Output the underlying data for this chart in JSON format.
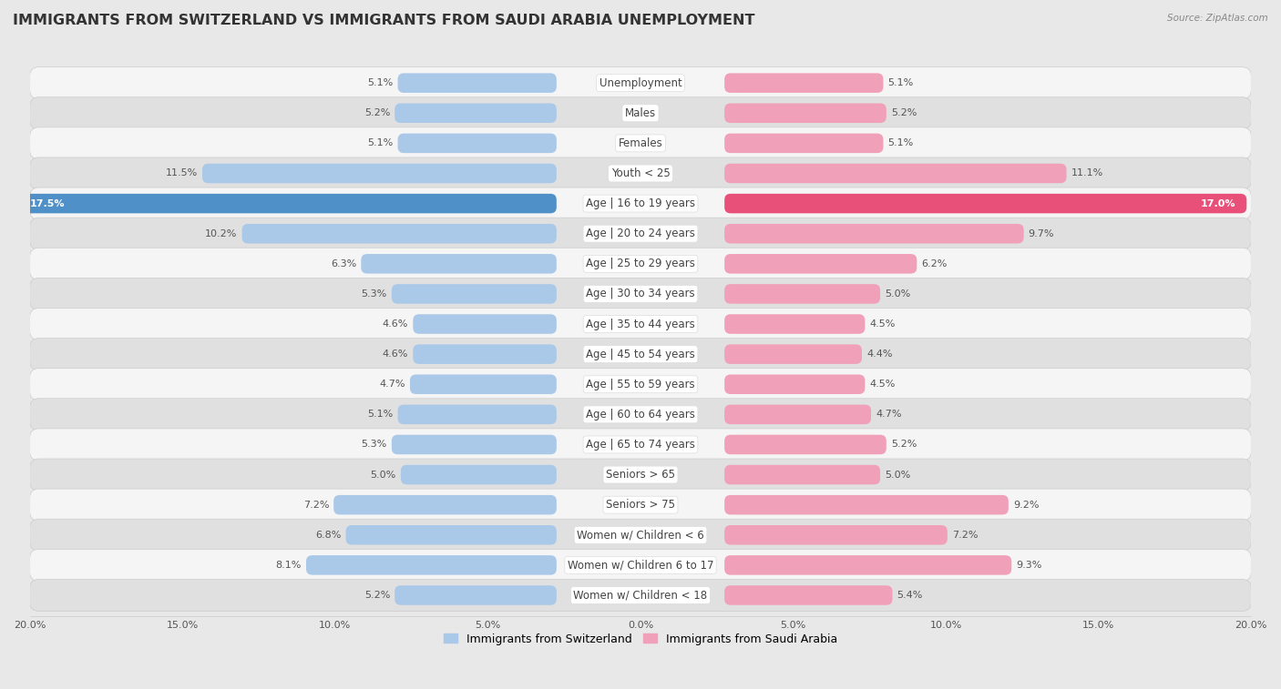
{
  "title": "IMMIGRANTS FROM SWITZERLAND VS IMMIGRANTS FROM SAUDI ARABIA UNEMPLOYMENT",
  "source": "Source: ZipAtlas.com",
  "categories": [
    "Unemployment",
    "Males",
    "Females",
    "Youth < 25",
    "Age | 16 to 19 years",
    "Age | 20 to 24 years",
    "Age | 25 to 29 years",
    "Age | 30 to 34 years",
    "Age | 35 to 44 years",
    "Age | 45 to 54 years",
    "Age | 55 to 59 years",
    "Age | 60 to 64 years",
    "Age | 65 to 74 years",
    "Seniors > 65",
    "Seniors > 75",
    "Women w/ Children < 6",
    "Women w/ Children 6 to 17",
    "Women w/ Children < 18"
  ],
  "switzerland_values": [
    5.1,
    5.2,
    5.1,
    11.5,
    17.5,
    10.2,
    6.3,
    5.3,
    4.6,
    4.6,
    4.7,
    5.1,
    5.3,
    5.0,
    7.2,
    6.8,
    8.1,
    5.2
  ],
  "saudi_values": [
    5.1,
    5.2,
    5.1,
    11.1,
    17.0,
    9.7,
    6.2,
    5.0,
    4.5,
    4.4,
    4.5,
    4.7,
    5.2,
    5.0,
    9.2,
    7.2,
    9.3,
    5.4
  ],
  "switzerland_color": "#aac8e8",
  "saudi_color": "#f0a0b8",
  "switzerland_highlight": "#5090c8",
  "saudi_highlight": "#e8507a",
  "switzerland_label": "Immigrants from Switzerland",
  "saudi_label": "Immigrants from Saudi Arabia",
  "axis_max": 20.0,
  "background_color": "#e8e8e8",
  "row_white": "#f5f5f5",
  "row_gray": "#e0e0e0",
  "title_fontsize": 11.5,
  "label_fontsize": 8.5,
  "value_fontsize": 8.0,
  "highlight_rows": [
    4
  ]
}
